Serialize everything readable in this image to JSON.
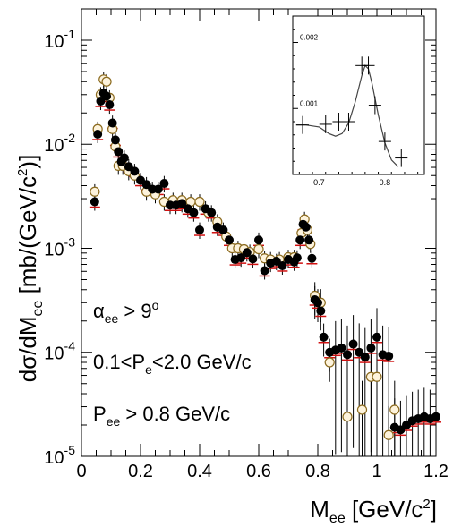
{
  "chart_data": [
    {
      "type": "scatter",
      "xlabel_main": "M",
      "xlabel_sub": "ee",
      "xlabel_unit": " [GeV/c",
      "xlabel_sup": "2",
      "xlabel_close": "]",
      "ylabel_prefix": "dσ/dM",
      "ylabel_sub": "ee",
      "ylabel_unit": " [mb/(GeV/c",
      "ylabel_sup": "2",
      "ylabel_close": ")]",
      "xlim": [
        0,
        1.2
      ],
      "ylim": [
        1e-05,
        0.2
      ],
      "yscale": "log",
      "x_ticks": [
        {
          "value": 0,
          "label": "0"
        },
        {
          "value": 0.2,
          "label": "0.2"
        },
        {
          "value": 0.4,
          "label": "0.4"
        },
        {
          "value": 0.6,
          "label": "0.6"
        },
        {
          "value": 0.8,
          "label": "0.8"
        },
        {
          "value": 1.0,
          "label": "1"
        },
        {
          "value": 1.2,
          "label": "1.2"
        }
      ],
      "y_ticks": [
        {
          "value": 1e-05,
          "base": "10",
          "exp": "-5"
        },
        {
          "value": 0.0001,
          "base": "10",
          "exp": "-4"
        },
        {
          "value": 0.001,
          "base": "10",
          "exp": "-3"
        },
        {
          "value": 0.01,
          "base": "10",
          "exp": "-2"
        },
        {
          "value": 0.1,
          "base": "10",
          "exp": "-1"
        }
      ],
      "annotations": [
        {
          "greek": "α",
          "sub": "ee",
          "text": " > 9",
          "sup": "o"
        },
        {
          "pre": "0.1<P",
          "sub": "e",
          "text": "<2.0 GeV/c"
        },
        {
          "pre": "P",
          "sub": "ee",
          "text": " > 0.8 GeV/c"
        }
      ],
      "marker_colors": {
        "filled": "#000000",
        "open_fill": "#fdf3dc",
        "open_stroke": "#8b6a1e",
        "error": "#000000",
        "syst": "#d11010"
      },
      "series_filled": [
        [
          0.045,
          0.0028
        ],
        [
          0.055,
          0.0125
        ],
        [
          0.065,
          0.026
        ],
        [
          0.075,
          0.031
        ],
        [
          0.085,
          0.029
        ],
        [
          0.095,
          0.024
        ],
        [
          0.105,
          0.016
        ],
        [
          0.115,
          0.011
        ],
        [
          0.125,
          0.0085
        ],
        [
          0.135,
          0.0068
        ],
        [
          0.145,
          0.0074
        ],
        [
          0.16,
          0.0061
        ],
        [
          0.18,
          0.0055
        ],
        [
          0.2,
          0.0045
        ],
        [
          0.22,
          0.0041
        ],
        [
          0.24,
          0.0037
        ],
        [
          0.26,
          0.0037
        ],
        [
          0.28,
          0.0042
        ],
        [
          0.3,
          0.0026
        ],
        [
          0.32,
          0.0026
        ],
        [
          0.34,
          0.0027
        ],
        [
          0.36,
          0.0024
        ],
        [
          0.38,
          0.0022
        ],
        [
          0.4,
          0.0015
        ],
        [
          0.42,
          0.0024
        ],
        [
          0.44,
          0.0022
        ],
        [
          0.46,
          0.0016
        ],
        [
          0.48,
          0.0015
        ],
        [
          0.5,
          0.0012
        ],
        [
          0.52,
          0.00078
        ],
        [
          0.54,
          0.00081
        ],
        [
          0.56,
          0.00091
        ],
        [
          0.58,
          0.00079
        ],
        [
          0.6,
          0.0012
        ],
        [
          0.62,
          0.00061
        ],
        [
          0.64,
          0.00072
        ],
        [
          0.66,
          0.00075
        ],
        [
          0.68,
          0.00068
        ],
        [
          0.7,
          0.00078
        ],
        [
          0.72,
          0.00074
        ],
        [
          0.73,
          0.00081
        ],
        [
          0.74,
          0.0012
        ],
        [
          0.75,
          0.0017
        ],
        [
          0.76,
          0.0016
        ],
        [
          0.77,
          0.0012
        ],
        [
          0.78,
          0.0008
        ],
        [
          0.79,
          0.00032
        ],
        [
          0.8,
          0.0003
        ],
        [
          0.81,
          0.00025
        ],
        [
          0.82,
          0.00014
        ],
        [
          0.84,
          0.0001
        ],
        [
          0.86,
          0.000105
        ],
        [
          0.88,
          0.00011
        ],
        [
          0.9,
          9.5e-05
        ],
        [
          0.92,
          0.00012
        ],
        [
          0.94,
          0.0001
        ],
        [
          0.96,
          9e-05
        ],
        [
          0.98,
          0.00011
        ],
        [
          1.0,
          0.00014
        ],
        [
          1.02,
          9.5e-05
        ],
        [
          1.04,
          9.2e-05
        ],
        [
          1.06,
          1.9e-05
        ],
        [
          1.08,
          1.8e-05
        ],
        [
          1.1,
          2e-05
        ],
        [
          1.12,
          2.2e-05
        ],
        [
          1.14,
          2.3e-05
        ],
        [
          1.16,
          2.4e-05
        ],
        [
          1.18,
          2.3e-05
        ],
        [
          1.2,
          2.4e-05
        ]
      ],
      "series_open": [
        [
          0.045,
          0.0035
        ],
        [
          0.055,
          0.014
        ],
        [
          0.065,
          0.03
        ],
        [
          0.075,
          0.042
        ],
        [
          0.085,
          0.04
        ],
        [
          0.095,
          0.028
        ],
        [
          0.105,
          0.014
        ],
        [
          0.115,
          0.0095
        ],
        [
          0.125,
          0.0062
        ],
        [
          0.14,
          0.0062
        ],
        [
          0.16,
          0.0055
        ],
        [
          0.18,
          0.005
        ],
        [
          0.22,
          0.0035
        ],
        [
          0.25,
          0.0033
        ],
        [
          0.28,
          0.0028
        ],
        [
          0.31,
          0.0029
        ],
        [
          0.34,
          0.0029
        ],
        [
          0.37,
          0.0028
        ],
        [
          0.4,
          0.0028
        ],
        [
          0.43,
          0.0022
        ],
        [
          0.46,
          0.0018
        ],
        [
          0.49,
          0.0013
        ],
        [
          0.51,
          0.001
        ],
        [
          0.53,
          0.001
        ],
        [
          0.55,
          0.00098
        ],
        [
          0.57,
          0.00092
        ],
        [
          0.6,
          0.00098
        ],
        [
          0.62,
          0.0008
        ],
        [
          0.64,
          0.00078
        ],
        [
          0.67,
          0.00078
        ],
        [
          0.7,
          0.00082
        ],
        [
          0.72,
          0.00082
        ],
        [
          0.745,
          0.0014
        ],
        [
          0.755,
          0.0019
        ],
        [
          0.765,
          0.0015
        ],
        [
          0.775,
          0.0011
        ],
        [
          0.79,
          0.00035
        ],
        [
          0.81,
          0.0003
        ],
        [
          0.84,
          8e-05
        ],
        [
          0.9,
          2.4e-05
        ],
        [
          0.95,
          2.8e-05
        ],
        [
          0.98,
          5.8e-05
        ],
        [
          1.0,
          5.8e-05
        ],
        [
          1.04,
          1.6e-05
        ],
        [
          1.06,
          2.8e-05
        ]
      ],
      "inset": {
        "xlim": [
          0.66,
          0.86
        ],
        "ylim": [
          0,
          0.0024
        ],
        "x_ticks": [
          {
            "value": 0.7,
            "label": "0.7"
          },
          {
            "value": 0.8,
            "label": "0.8"
          }
        ],
        "y_ticks": [
          {
            "value": 0.001,
            "label": "0.001"
          },
          {
            "value": 0.002,
            "label": "0.002"
          }
        ],
        "points": [
          [
            0.675,
            0.00075
          ],
          [
            0.71,
            0.00076
          ],
          [
            0.73,
            0.0008
          ],
          [
            0.745,
            0.0008
          ],
          [
            0.765,
            0.00165
          ],
          [
            0.775,
            0.00165
          ],
          [
            0.785,
            0.00105
          ],
          [
            0.8,
            0.0005
          ],
          [
            0.825,
            0.00025
          ]
        ],
        "curve": [
          [
            0.665,
            0.00075
          ],
          [
            0.68,
            0.00075
          ],
          [
            0.7,
            0.00072
          ],
          [
            0.715,
            0.00062
          ],
          [
            0.725,
            0.00058
          ],
          [
            0.735,
            0.00062
          ],
          [
            0.745,
            0.00078
          ],
          [
            0.755,
            0.0011
          ],
          [
            0.765,
            0.0015
          ],
          [
            0.77,
            0.00165
          ],
          [
            0.775,
            0.0016
          ],
          [
            0.78,
            0.0014
          ],
          [
            0.79,
            0.0009
          ],
          [
            0.8,
            0.00048
          ],
          [
            0.81,
            0.00022
          ],
          [
            0.82,
            0.00012
          ]
        ]
      }
    }
  ]
}
